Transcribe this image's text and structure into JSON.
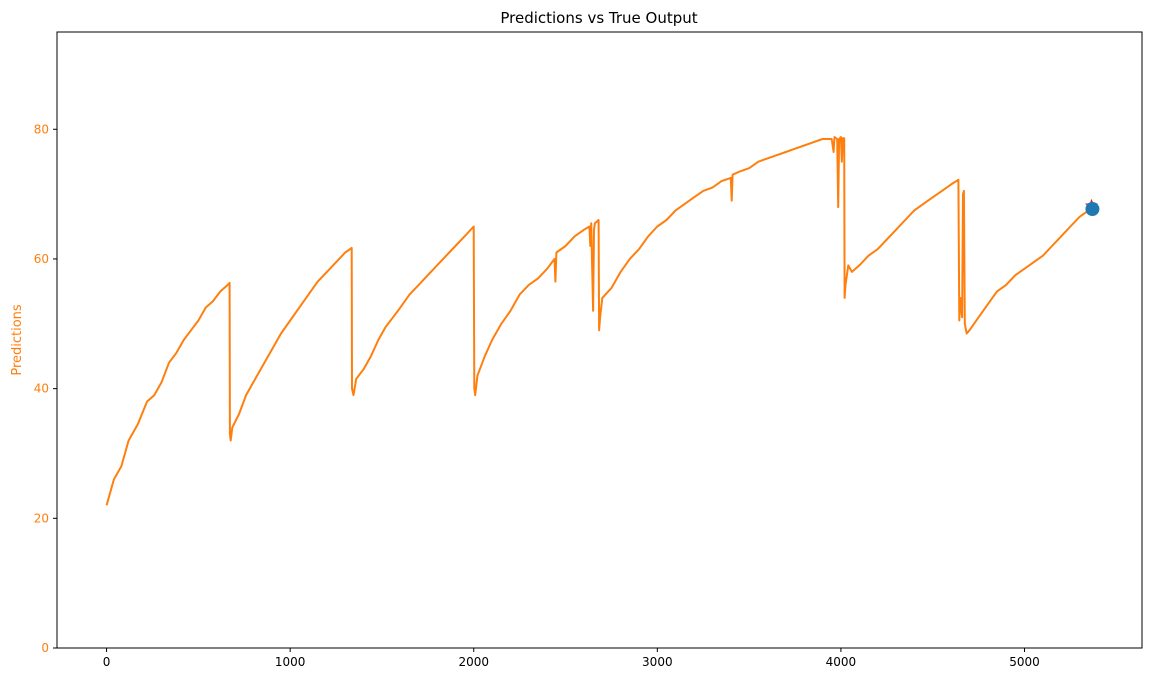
{
  "chart_data": {
    "type": "line",
    "title": "Predictions vs True Output",
    "xlabel": "",
    "ylabel": "Predictions",
    "xlim": [
      -270,
      5640
    ],
    "ylim": [
      0,
      95
    ],
    "x_ticks": [
      0,
      1000,
      2000,
      3000,
      4000,
      5000
    ],
    "y_ticks": [
      0,
      20,
      40,
      60,
      80
    ],
    "grid": false,
    "colors": {
      "line": "#ff7f0e",
      "axis_label": "#ff7f0e",
      "final_true_marker": "#1f77b4",
      "final_pred_marker": "#d62728",
      "text": "#000000"
    },
    "series": [
      {
        "points": [
          [
            0,
            22
          ],
          [
            40,
            26
          ],
          [
            80,
            28
          ],
          [
            120,
            32
          ],
          [
            170,
            34.5
          ],
          [
            220,
            38
          ],
          [
            260,
            39
          ],
          [
            300,
            41
          ],
          [
            340,
            44
          ],
          [
            380,
            45.5
          ],
          [
            420,
            47.5
          ],
          [
            460,
            49
          ],
          [
            500,
            50.5
          ],
          [
            540,
            52.5
          ],
          [
            580,
            53.5
          ],
          [
            620,
            55
          ],
          [
            660,
            56
          ],
          [
            670,
            56.3
          ],
          [
            672,
            33
          ],
          [
            676,
            32
          ],
          [
            685,
            34
          ],
          [
            720,
            36
          ],
          [
            760,
            39
          ],
          [
            800,
            41
          ],
          [
            850,
            43.5
          ],
          [
            900,
            46
          ],
          [
            950,
            48.5
          ],
          [
            1000,
            50.5
          ],
          [
            1050,
            52.5
          ],
          [
            1100,
            54.5
          ],
          [
            1150,
            56.5
          ],
          [
            1200,
            58
          ],
          [
            1250,
            59.5
          ],
          [
            1300,
            61
          ],
          [
            1335,
            61.7
          ],
          [
            1337,
            40
          ],
          [
            1345,
            39
          ],
          [
            1360,
            41.5
          ],
          [
            1400,
            43
          ],
          [
            1440,
            45
          ],
          [
            1480,
            47.5
          ],
          [
            1520,
            49.5
          ],
          [
            1560,
            51
          ],
          [
            1600,
            52.5
          ],
          [
            1650,
            54.5
          ],
          [
            1700,
            56
          ],
          [
            1750,
            57.5
          ],
          [
            1800,
            59
          ],
          [
            1850,
            60.5
          ],
          [
            1900,
            62
          ],
          [
            1950,
            63.5
          ],
          [
            2000,
            65
          ],
          [
            2003,
            40
          ],
          [
            2008,
            39
          ],
          [
            2020,
            42
          ],
          [
            2060,
            45
          ],
          [
            2100,
            47.5
          ],
          [
            2150,
            50
          ],
          [
            2200,
            52
          ],
          [
            2250,
            54.5
          ],
          [
            2300,
            56
          ],
          [
            2350,
            57
          ],
          [
            2400,
            58.5
          ],
          [
            2440,
            60
          ],
          [
            2445,
            56.5
          ],
          [
            2450,
            61
          ],
          [
            2500,
            62
          ],
          [
            2550,
            63.5
          ],
          [
            2600,
            64.5
          ],
          [
            2630,
            65
          ],
          [
            2635,
            62
          ],
          [
            2640,
            65.5
          ],
          [
            2650,
            52
          ],
          [
            2655,
            64.5
          ],
          [
            2660,
            65.5
          ],
          [
            2680,
            66
          ],
          [
            2683,
            49
          ],
          [
            2688,
            51
          ],
          [
            2700,
            54
          ],
          [
            2750,
            55.5
          ],
          [
            2800,
            58
          ],
          [
            2850,
            60
          ],
          [
            2900,
            61.5
          ],
          [
            2950,
            63.5
          ],
          [
            3000,
            65
          ],
          [
            3050,
            66
          ],
          [
            3100,
            67.5
          ],
          [
            3150,
            68.5
          ],
          [
            3200,
            69.5
          ],
          [
            3250,
            70.5
          ],
          [
            3300,
            71
          ],
          [
            3350,
            72
          ],
          [
            3400,
            72.5
          ],
          [
            3405,
            69
          ],
          [
            3410,
            73
          ],
          [
            3450,
            73.5
          ],
          [
            3500,
            74
          ],
          [
            3550,
            75
          ],
          [
            3600,
            75.5
          ],
          [
            3650,
            76
          ],
          [
            3700,
            76.5
          ],
          [
            3750,
            77
          ],
          [
            3800,
            77.5
          ],
          [
            3850,
            78
          ],
          [
            3900,
            78.5
          ],
          [
            3950,
            78.5
          ],
          [
            3960,
            76.5
          ],
          [
            3965,
            78.8
          ],
          [
            3980,
            78.5
          ],
          [
            3985,
            68
          ],
          [
            3990,
            78.5
          ],
          [
            4000,
            78.8
          ],
          [
            4005,
            75
          ],
          [
            4010,
            78.6
          ],
          [
            4018,
            78.6
          ],
          [
            4020,
            54
          ],
          [
            4025,
            56
          ],
          [
            4040,
            59
          ],
          [
            4060,
            58
          ],
          [
            4100,
            59
          ],
          [
            4150,
            60.5
          ],
          [
            4200,
            61.5
          ],
          [
            4250,
            63
          ],
          [
            4300,
            64.5
          ],
          [
            4350,
            66
          ],
          [
            4400,
            67.5
          ],
          [
            4450,
            68.5
          ],
          [
            4500,
            69.5
          ],
          [
            4550,
            70.5
          ],
          [
            4600,
            71.5
          ],
          [
            4640,
            72.2
          ],
          [
            4645,
            50.5
          ],
          [
            4650,
            54
          ],
          [
            4660,
            51
          ],
          [
            4665,
            70
          ],
          [
            4670,
            70.5
          ],
          [
            4675,
            50
          ],
          [
            4685,
            48.5
          ],
          [
            4700,
            49
          ],
          [
            4750,
            51
          ],
          [
            4800,
            53
          ],
          [
            4850,
            55
          ],
          [
            4900,
            56
          ],
          [
            4950,
            57.5
          ],
          [
            5000,
            58.5
          ],
          [
            5050,
            59.5
          ],
          [
            5100,
            60.5
          ],
          [
            5150,
            62
          ],
          [
            5200,
            63.5
          ],
          [
            5250,
            65
          ],
          [
            5300,
            66.5
          ],
          [
            5350,
            67.5
          ],
          [
            5380,
            68
          ]
        ]
      }
    ],
    "markers": [
      {
        "shape": "star",
        "x": 5365,
        "y": 68.2
      },
      {
        "shape": "circle",
        "x": 5370,
        "y": 67.7
      }
    ]
  }
}
